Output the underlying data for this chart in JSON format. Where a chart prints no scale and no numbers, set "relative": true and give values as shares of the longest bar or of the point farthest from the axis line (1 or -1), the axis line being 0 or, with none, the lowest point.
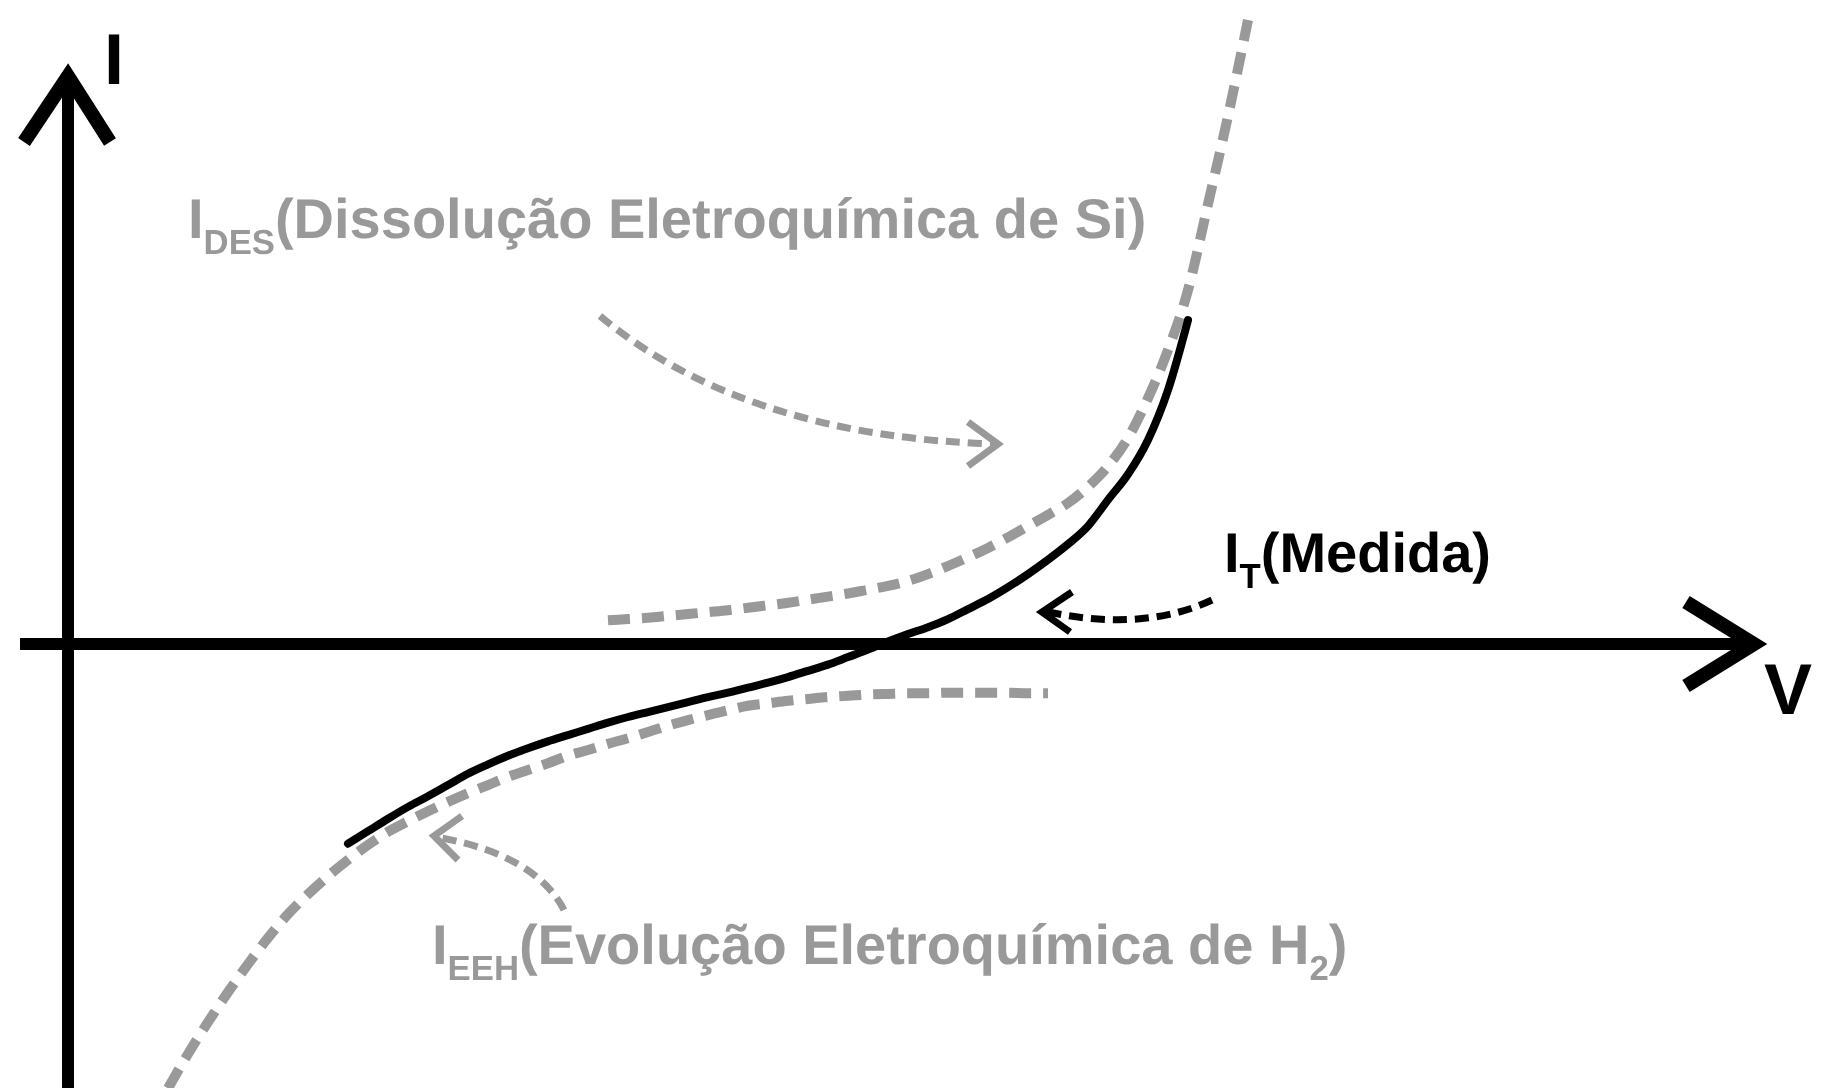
{
  "chart_data": {
    "type": "line",
    "relative": true,
    "xlabel": "V",
    "ylabel": "I",
    "categories": [
      null,
      null,
      null,
      null,
      null,
      null,
      null,
      null,
      null,
      null,
      null,
      null,
      null,
      null,
      null,
      null,
      null,
      null,
      null,
      null,
      null,
      null,
      null,
      null,
      null,
      null,
      null,
      null,
      null,
      null,
      null,
      null,
      null,
      null,
      null,
      null,
      null,
      null,
      null,
      null,
      null,
      null,
      null,
      null,
      null,
      null,
      null,
      null,
      null,
      null,
      null,
      null,
      null,
      null,
      null,
      null,
      null,
      null,
      null,
      null,
      null,
      null,
      null,
      null,
      null,
      null,
      null,
      null,
      null,
      null,
      null,
      null,
      null,
      null,
      null,
      null,
      null,
      null,
      null,
      null,
      null,
      null,
      null,
      null,
      null
    ],
    "series": [
      {
        "name": "I$_{DES}$(Dissolução Eletroquímica de Si)",
        "color": "#999999",
        "line_style": "dashed",
        "values": [
          null,
          null,
          null,
          null,
          null,
          null,
          null,
          null,
          null,
          null,
          null,
          null,
          null,
          null,
          null,
          null,
          null,
          null,
          null,
          null,
          null,
          null,
          null,
          null,
          null,
          null,
          null,
          0.038,
          0.04,
          0.042,
          0.045,
          0.048,
          0.051,
          0.054,
          0.058,
          0.062,
          0.066,
          0.071,
          0.076,
          0.081,
          0.087,
          0.093,
          0.101,
          0.112,
          0.125,
          0.139,
          0.154,
          0.171,
          0.189,
          0.207,
          0.226,
          0.252,
          0.285,
          0.33,
          0.394,
          0.471,
          0.567,
          0.705,
          0.846,
          1,
          null,
          null,
          null,
          null,
          null,
          null,
          null,
          null,
          null,
          null,
          null,
          null,
          null,
          null,
          null,
          null,
          null,
          null,
          null,
          null,
          null,
          null,
          null,
          null,
          null
        ]
      },
      {
        "name": "I$_{EEH}$(Evolução Eletroquímica de H$_{2}$)",
        "color": "#999999",
        "line_style": "dashed",
        "values": [
          null,
          null,
          null,
          null,
          null,
          -0.712,
          -0.657,
          -0.606,
          -0.558,
          -0.513,
          -0.471,
          -0.433,
          -0.401,
          -0.372,
          -0.346,
          -0.322,
          -0.301,
          -0.284,
          -0.268,
          -0.253,
          -0.239,
          -0.226,
          -0.213,
          -0.202,
          -0.191,
          -0.179,
          -0.17,
          -0.16,
          -0.151,
          -0.141,
          -0.131,
          -0.122,
          -0.114,
          -0.106,
          -0.099,
          -0.095,
          -0.091,
          -0.088,
          -0.085,
          -0.083,
          -0.081,
          -0.08,
          -0.079,
          -0.079,
          -0.078,
          -0.078,
          -0.078,
          -0.078,
          -0.079,
          -0.079,
          null,
          null,
          null,
          null,
          null,
          null,
          null,
          null,
          null,
          null,
          null,
          null,
          null,
          null,
          null,
          null,
          null,
          null,
          null,
          null,
          null,
          null,
          null,
          null,
          null,
          null,
          null,
          null,
          null,
          null,
          null,
          null,
          null,
          null,
          null
        ]
      },
      {
        "name": "I$_{T}$(Medida)",
        "color": "#000000",
        "line_style": "solid",
        "values": [
          null,
          null,
          null,
          null,
          null,
          null,
          null,
          null,
          null,
          null,
          null,
          null,
          null,
          null,
          -0.32,
          -0.3,
          -0.28,
          -0.261,
          -0.244,
          -0.226,
          -0.208,
          -0.193,
          -0.179,
          -0.167,
          -0.156,
          -0.146,
          -0.136,
          -0.126,
          -0.117,
          -0.109,
          -0.101,
          -0.093,
          -0.085,
          -0.078,
          -0.07,
          -0.062,
          -0.053,
          -0.043,
          -0.033,
          -0.021,
          -0.009,
          0.004,
          0.016,
          0.027,
          0.04,
          0.056,
          0.072,
          0.091,
          0.112,
          0.135,
          0.16,
          0.189,
          0.231,
          0.272,
          0.327,
          0.407,
          0.519,
          null,
          null,
          null,
          null,
          null,
          null,
          null,
          null,
          null,
          null,
          null,
          null,
          null,
          null,
          null,
          null,
          null,
          null,
          null,
          null,
          null,
          null,
          null,
          null,
          null,
          null,
          null,
          null
        ]
      }
    ]
  }
}
